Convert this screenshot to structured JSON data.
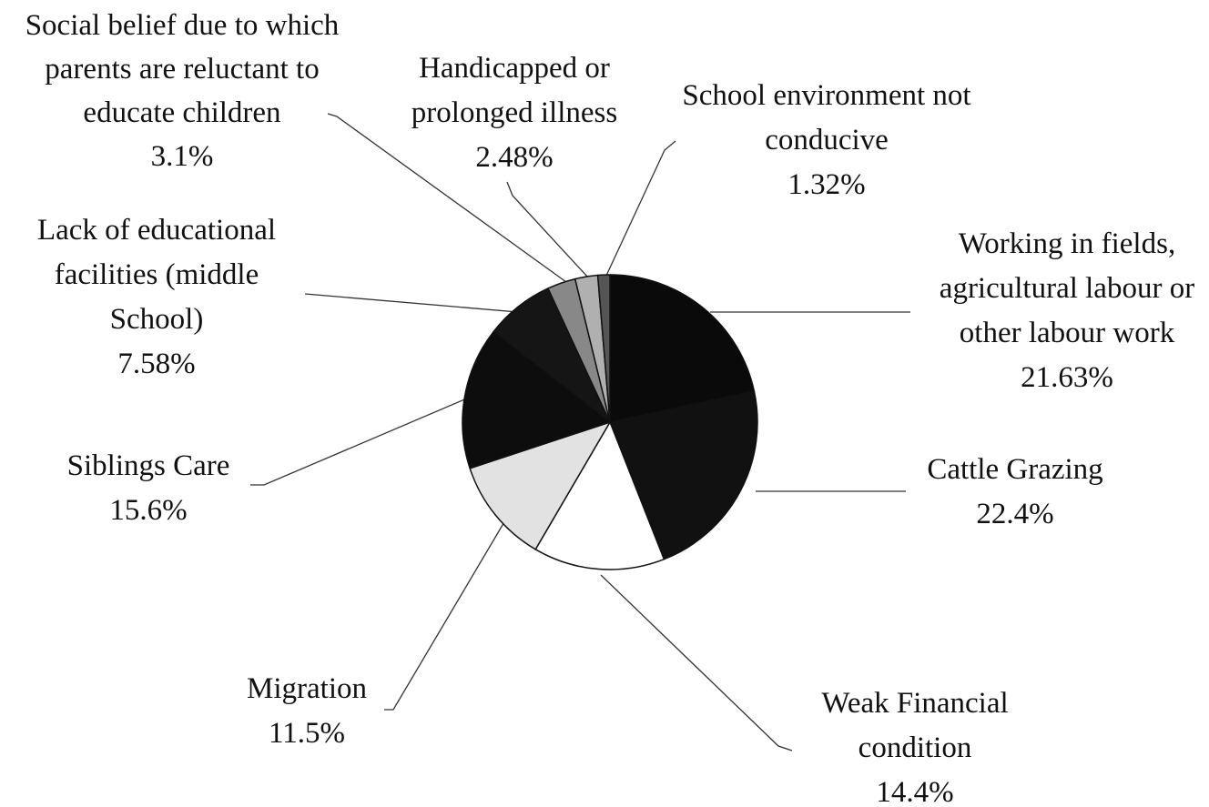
{
  "chart_data": {
    "type": "pie",
    "categories": [
      "Working in fields, agricultural labour or other labour work",
      "Cattle Grazing",
      "Weak Financial condition",
      "Migration",
      "Siblings Care",
      "Lack of educational facilities (middle School)",
      "Social belief due to which parents are reluctant to educate children",
      "Handicapped or prolonged illness",
      "School environment not conducive"
    ],
    "values": [
      21.63,
      22.4,
      14.4,
      11.5,
      15.6,
      7.58,
      3.1,
      2.48,
      1.32
    ],
    "value_labels": [
      "21.63%",
      "22.4%",
      "14.4%",
      "11.5%",
      "15.6%",
      "7.58%",
      "3.1%",
      "2.48%",
      "1.32%"
    ],
    "colors": [
      "#0a0a0a",
      "#111111",
      "#ffffff",
      "#e2e2e2",
      "#0d0d0d",
      "#151515",
      "#888888",
      "#b0b0b0",
      "#555555"
    ]
  }
}
